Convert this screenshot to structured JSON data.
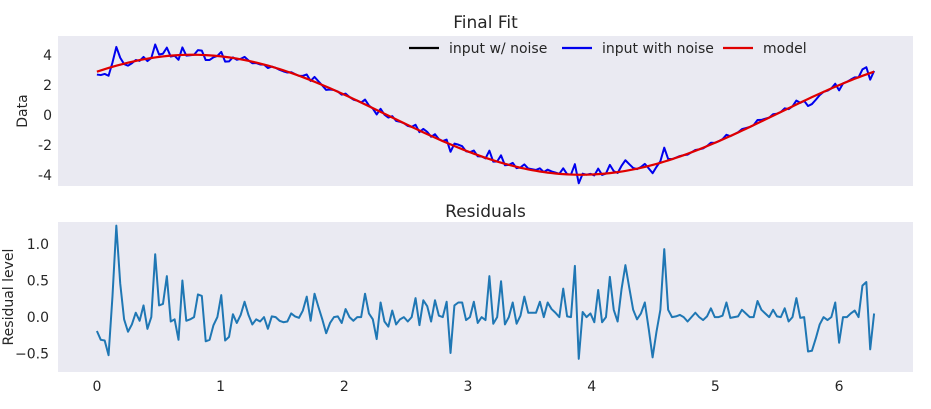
{
  "chart_data": [
    {
      "type": "line",
      "title": "Final Fit",
      "xlabel": "",
      "ylabel": "Data",
      "xlim": [
        -0.3145,
        6.5977
      ],
      "ylim": [
        -4.75,
        5.25
      ],
      "yticks": [
        4,
        2,
        0,
        -2,
        -4
      ],
      "grid": false,
      "legend": {
        "placement": "top-right",
        "ncol": 3,
        "entries": [
          {
            "name": "input w/ noise",
            "color": "#000000"
          },
          {
            "name": "input with noise",
            "color": "#0000ee"
          },
          {
            "name": "model",
            "color": "#e00000"
          }
        ]
      },
      "series": [
        {
          "name": "input w/ noise",
          "color": "#000000",
          "x": [],
          "values": []
        },
        {
          "name": "input with noise",
          "color": "#0000ee",
          "x": "shared",
          "values": "data_noisy"
        },
        {
          "name": "model",
          "color": "#e00000",
          "x": "shared",
          "values": "model"
        }
      ],
      "x": "x_grid",
      "model": "4*sin(x + 0.8)",
      "data_noisy": "model + residuals"
    },
    {
      "type": "line",
      "title": "Residuals",
      "xlabel": "",
      "ylabel": "Residual level",
      "xlim": [
        -0.3145,
        6.5977
      ],
      "ylim": [
        -0.75,
        1.3
      ],
      "xticks": [
        0,
        1,
        2,
        3,
        4,
        5,
        6
      ],
      "yticks": [
        1.0,
        0.5,
        0.0,
        -0.5
      ],
      "ytick_labels": [
        "1.0",
        "0.5",
        "0.0",
        "−0.5"
      ],
      "grid": false,
      "series": [
        {
          "name": "",
          "color": "#1f77b4",
          "x_start": 0,
          "x_end": 6.2832,
          "n": 201,
          "values": [
            -0.19,
            -0.31,
            -0.32,
            -0.52,
            0.28,
            1.25,
            0.46,
            -0.03,
            -0.2,
            -0.1,
            0.06,
            -0.05,
            0.16,
            -0.16,
            0.0,
            0.86,
            0.16,
            0.18,
            0.56,
            -0.06,
            -0.03,
            -0.31,
            0.5,
            -0.05,
            -0.03,
            0.0,
            0.31,
            0.29,
            -0.33,
            -0.31,
            -0.11,
            0.0,
            0.3,
            -0.32,
            -0.27,
            0.04,
            -0.08,
            0.03,
            0.21,
            0.03,
            -0.1,
            -0.03,
            -0.06,
            0.0,
            -0.16,
            0.01,
            0.0,
            -0.05,
            -0.07,
            -0.06,
            0.05,
            0.01,
            -0.01,
            0.09,
            0.28,
            -0.05,
            0.32,
            0.14,
            -0.03,
            -0.22,
            -0.08,
            0.0,
            0.01,
            -0.08,
            0.11,
            0.0,
            -0.05,
            0.0,
            0.0,
            0.32,
            0.05,
            -0.03,
            -0.3,
            0.2,
            -0.06,
            -0.13,
            0.09,
            -0.1,
            -0.03,
            0.0,
            -0.06,
            0.0,
            0.26,
            -0.11,
            0.23,
            0.15,
            -0.06,
            0.23,
            0.02,
            0.0,
            0.21,
            -0.49,
            0.16,
            0.2,
            0.2,
            -0.04,
            0.0,
            0.21,
            -0.08,
            0.0,
            -0.04,
            0.56,
            -0.09,
            0.0,
            0.49,
            -0.1,
            0.0,
            0.2,
            -0.09,
            0.02,
            0.28,
            0.06,
            0.06,
            0.06,
            0.21,
            0.0,
            0.2,
            0.11,
            0.06,
            0.0,
            0.39,
            0.01,
            0.0,
            0.7,
            -0.57,
            0.07,
            0.0,
            0.05,
            -0.07,
            0.37,
            -0.07,
            0.0,
            0.55,
            0.1,
            -0.06,
            0.38,
            0.71,
            0.4,
            0.1,
            -0.03,
            0.05,
            0.2,
            -0.16,
            -0.55,
            -0.2,
            0.1,
            0.93,
            0.1,
            0.0,
            0.01,
            0.03,
            0.0,
            -0.06,
            0.0,
            0.06,
            0.0,
            -0.04,
            0.01,
            0.12,
            0.0,
            0.0,
            0.02,
            0.2,
            -0.01,
            0.0,
            0.01,
            0.1,
            0.05,
            0.0,
            0.0,
            0.22,
            0.1,
            0.05,
            0.0,
            0.1,
            0.01,
            0.0,
            0.12,
            -0.06,
            0.0,
            0.26,
            -0.01,
            0.0,
            -0.47,
            -0.46,
            -0.29,
            -0.1,
            0.0,
            -0.04,
            0.0,
            0.2,
            -0.35,
            0.0,
            0.0,
            0.05,
            0.09,
            0.0,
            0.43,
            0.48,
            -0.44,
            0.05,
            0.0
          ]
        }
      ]
    }
  ]
}
